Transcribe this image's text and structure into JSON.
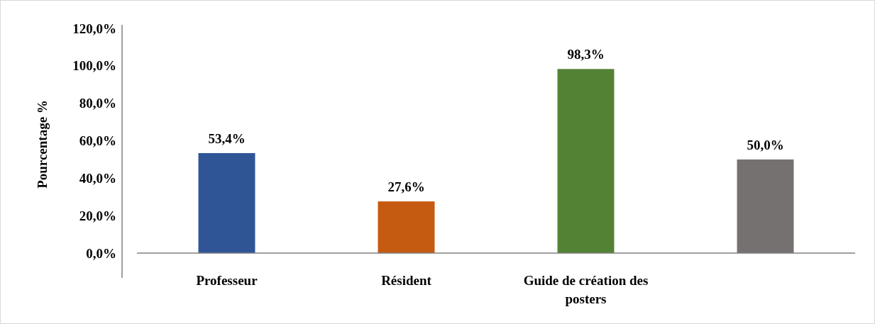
{
  "chart_data": {
    "type": "bar",
    "ylabel": "Pourcentage %",
    "categories": [
      "Professeur",
      "Résident",
      "Guide de création des posters",
      null
    ],
    "values": [
      53.4,
      27.6,
      98.3,
      50.0
    ],
    "colors": [
      "#2f5597",
      "#c55a11",
      "#548235",
      "#767171"
    ],
    "value_labels": [
      "53,4%",
      "27,6%",
      "98,3%",
      "50,0%"
    ],
    "ylim": [
      0,
      120
    ],
    "yticks": [
      {
        "value": 0,
        "label": "0,0%"
      },
      {
        "value": 20,
        "label": "20,0%"
      },
      {
        "value": 40,
        "label": "40,0%"
      },
      {
        "value": 60,
        "label": "60,0%"
      },
      {
        "value": 80,
        "label": "80,0%"
      },
      {
        "value": 100,
        "label": "100,0%"
      },
      {
        "value": 120,
        "label": "120,0%"
      }
    ],
    "grid": false
  }
}
